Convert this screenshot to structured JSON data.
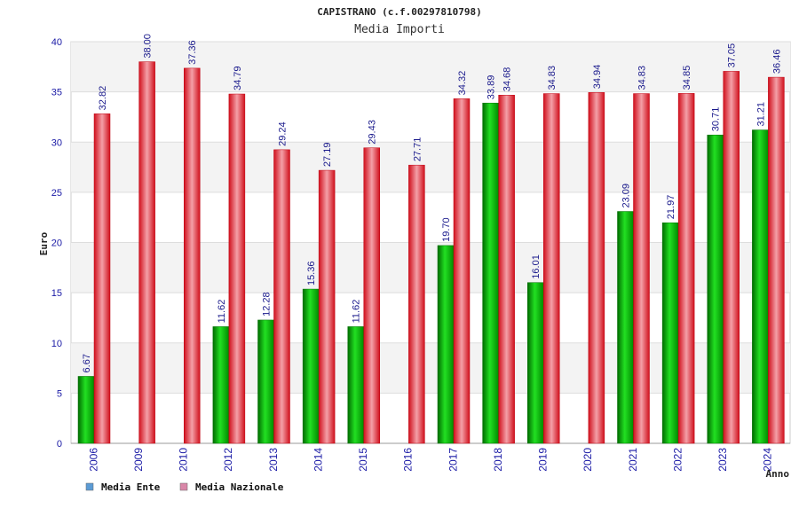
{
  "chart_data": {
    "type": "bar",
    "title": "CAPISTRANO (c.f.00297810798)",
    "subtitle": "Media Importi",
    "ylabel": "Euro",
    "xlabel": "Anno",
    "ylim": [
      0,
      40
    ],
    "yticks": [
      0,
      5,
      10,
      15,
      20,
      25,
      30,
      35,
      40
    ],
    "grid": true,
    "legend_position": "bottom-left",
    "categories": [
      "2006",
      "2009",
      "2010",
      "2012",
      "2013",
      "2014",
      "2015",
      "2016",
      "2017",
      "2018",
      "2019",
      "2020",
      "2021",
      "2022",
      "2023",
      "2024"
    ],
    "series": [
      {
        "name": "Media Ente",
        "color": "#00a000",
        "legend_color": "#5b9bd5",
        "values": [
          6.67,
          null,
          null,
          11.62,
          12.28,
          15.36,
          11.62,
          null,
          19.7,
          33.89,
          16.01,
          null,
          23.09,
          21.97,
          30.71,
          31.21
        ],
        "labels": [
          "6.67",
          "",
          "",
          "11.62",
          "12.28",
          "15.36",
          "11.62",
          "",
          "19.70",
          "33.89",
          "16.01",
          "",
          "23.09",
          "21.97",
          "30.71",
          "31.21"
        ]
      },
      {
        "name": "Media Nazionale",
        "color": "#e8202a",
        "legend_color": "#d987a8",
        "values": [
          32.82,
          38.0,
          37.36,
          34.79,
          29.24,
          27.19,
          29.43,
          27.71,
          34.32,
          34.68,
          34.83,
          34.94,
          34.83,
          34.85,
          37.05,
          36.46
        ],
        "labels": [
          "32.82",
          "38.00",
          "37.36",
          "34.79",
          "29.24",
          "27.19",
          "29.43",
          "27.71",
          "34.32",
          "34.68",
          "34.83",
          "34.94",
          "34.83",
          "34.85",
          "37.05",
          "36.46"
        ]
      }
    ]
  }
}
